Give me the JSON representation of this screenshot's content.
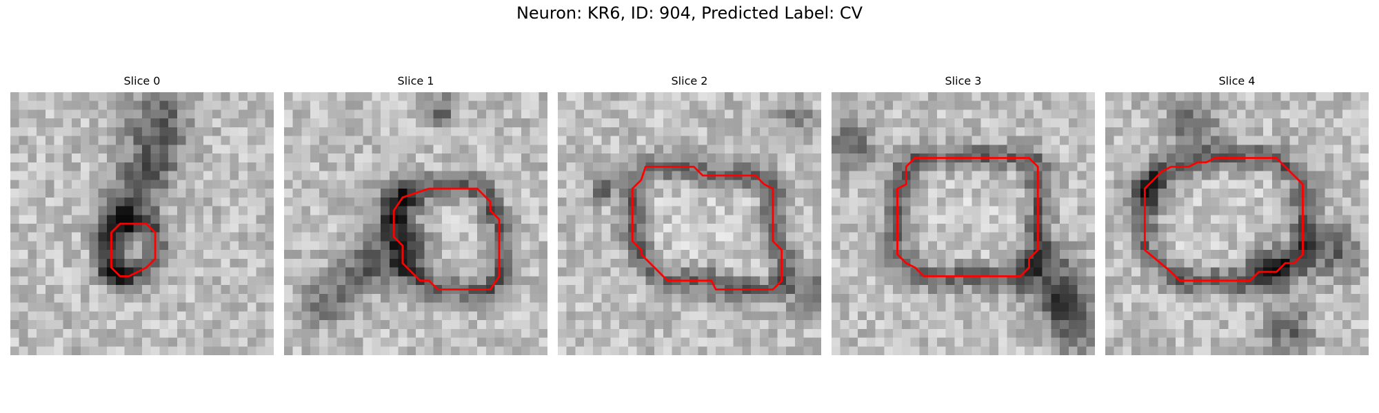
{
  "title": "Neuron: KR6, ID: 904, Predicted Label: CV",
  "outline_color": "#ff0000",
  "colormap": "gray",
  "slices": [
    {
      "label": "Slice 0",
      "contour": [
        [
          12.5,
          15
        ],
        [
          15.5,
          15
        ],
        [
          16.5,
          16
        ],
        [
          16.5,
          19
        ],
        [
          15.5,
          20
        ],
        [
          13.5,
          21
        ],
        [
          12.5,
          21
        ],
        [
          11.5,
          20
        ],
        [
          11.5,
          16
        ]
      ]
    },
    {
      "label": "Slice 1",
      "contour": [
        [
          16.5,
          11
        ],
        [
          22,
          11
        ],
        [
          23.5,
          12.5
        ],
        [
          23.5,
          13.5
        ],
        [
          24.5,
          14.5
        ],
        [
          24.5,
          21
        ],
        [
          23.5,
          22.5
        ],
        [
          17.5,
          22.5
        ],
        [
          16.5,
          21.5
        ],
        [
          15.5,
          21.5
        ],
        [
          14.5,
          20.5
        ],
        [
          13.5,
          19.5
        ],
        [
          13.5,
          17.5
        ],
        [
          12.5,
          16.5
        ],
        [
          12.5,
          13.5
        ],
        [
          13.5,
          12
        ]
      ]
    },
    {
      "label": "Slice 2",
      "contour": [
        [
          10,
          8.5
        ],
        [
          15.5,
          8.5
        ],
        [
          16.5,
          9.5
        ],
        [
          22.5,
          9.5
        ],
        [
          23.5,
          10.5
        ],
        [
          24.5,
          11
        ],
        [
          24.5,
          17
        ],
        [
          25.5,
          18
        ],
        [
          25.5,
          21.5
        ],
        [
          24.5,
          22.5
        ],
        [
          18,
          22.5
        ],
        [
          17.5,
          21.5
        ],
        [
          12.5,
          21.5
        ],
        [
          10.5,
          19.5
        ],
        [
          9.5,
          18.5
        ],
        [
          9.5,
          18
        ],
        [
          8.5,
          17
        ],
        [
          8.5,
          11
        ],
        [
          9.5,
          10
        ]
      ]
    },
    {
      "label": "Slice 3",
      "contour": [
        [
          9.5,
          7.5
        ],
        [
          22.5,
          7.5
        ],
        [
          23.5,
          8.5
        ],
        [
          23.5,
          18
        ],
        [
          22.5,
          19
        ],
        [
          22.5,
          20
        ],
        [
          21.5,
          21
        ],
        [
          10.5,
          21
        ],
        [
          9.5,
          20
        ],
        [
          8.5,
          19.5
        ],
        [
          7.5,
          18.5
        ],
        [
          7.5,
          11
        ],
        [
          8.5,
          10.5
        ],
        [
          8.5,
          8.5
        ]
      ]
    },
    {
      "label": "Slice 4",
      "contour": [
        [
          12.5,
          7.5
        ],
        [
          19.5,
          7.5
        ],
        [
          21.5,
          9.5
        ],
        [
          22.5,
          10.5
        ],
        [
          22.5,
          18.5
        ],
        [
          21.5,
          19.5
        ],
        [
          20.5,
          19.5
        ],
        [
          19.5,
          20.5
        ],
        [
          17.5,
          20.5
        ],
        [
          16.5,
          21.5
        ],
        [
          8.5,
          21.5
        ],
        [
          7.5,
          20.5
        ],
        [
          4.5,
          18
        ],
        [
          4.5,
          11
        ],
        [
          6.5,
          9
        ],
        [
          7.5,
          8.5
        ],
        [
          9.5,
          8.5
        ],
        [
          10.5,
          8
        ],
        [
          11.5,
          8
        ]
      ]
    }
  ]
}
